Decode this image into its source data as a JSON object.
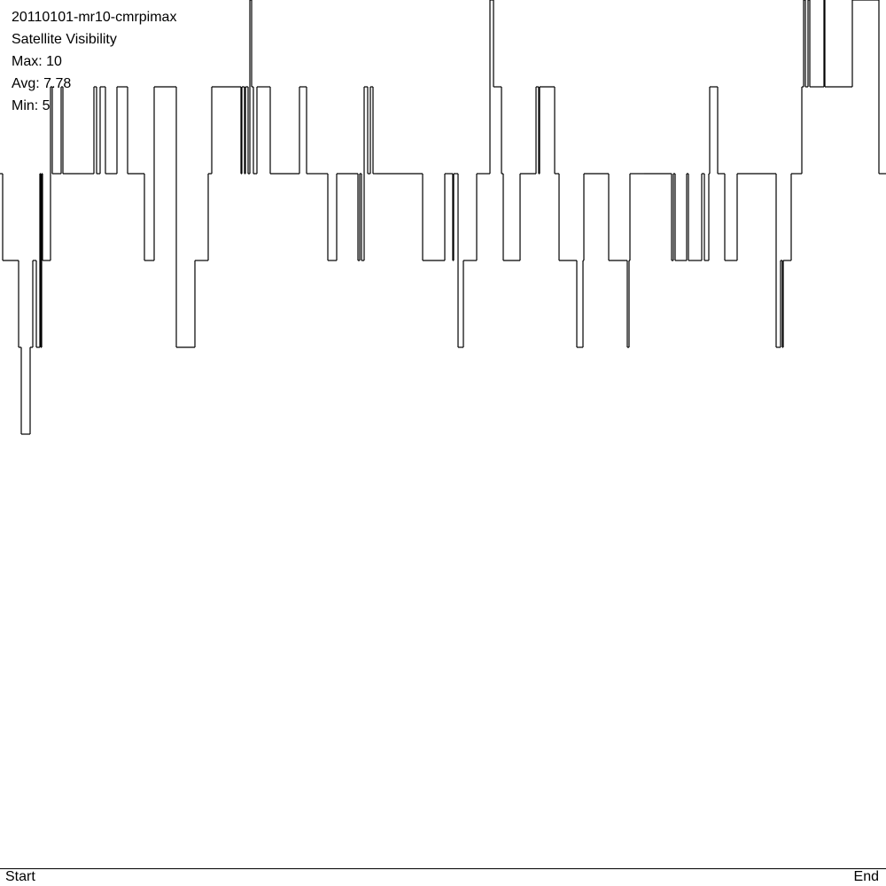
{
  "chart_data": {
    "type": "line",
    "title": "20110101-mr10-cmrpimax",
    "subtitle": "Satellite Visibility",
    "stats": {
      "max_label": "Max: 10",
      "avg_label": "Avg: 7.78",
      "min_label": "Min: 5"
    },
    "x_start_label": "Start",
    "x_end_label": "End",
    "ylim": [
      0,
      10
    ],
    "grid": false,
    "line_color": "#000000",
    "x": [
      0,
      3,
      21,
      24,
      34,
      37,
      41,
      45,
      46,
      47,
      48,
      57,
      59,
      69,
      71,
      90,
      106,
      109,
      113,
      119,
      132,
      144,
      145,
      163,
      174,
      199,
      220,
      235,
      239,
      272,
      273,
      276,
      277,
      280,
      282,
      284,
      286,
      287,
      290,
      305,
      338,
      346,
      359,
      370,
      380,
      404,
      406,
      408,
      411,
      415,
      418,
      421,
      425,
      477,
      502,
      511,
      512,
      517,
      523,
      538,
      553,
      557,
      566,
      568,
      587,
      605,
      608,
      609,
      626,
      631,
      651,
      658,
      659,
      687,
      708,
      710,
      711,
      727,
      758,
      760,
      762,
      775,
      777,
      792,
      795,
      800,
      801,
      810,
      818,
      825,
      832,
      876,
      881,
      883,
      884,
      893,
      905,
      907,
      909,
      912,
      914,
      917,
      930,
      931,
      962,
      992
    ],
    "y": [
      8,
      7,
      6,
      5,
      6,
      7,
      6,
      8,
      6,
      8,
      7,
      9,
      8,
      9,
      8,
      8,
      9,
      8,
      9,
      8,
      9,
      8,
      8,
      7,
      9,
      6,
      7,
      8,
      9,
      8,
      9,
      8,
      9,
      8,
      10,
      9,
      8,
      8,
      9,
      8,
      9,
      8,
      8,
      7,
      8,
      7,
      8,
      7,
      9,
      8,
      9,
      8,
      8,
      7,
      8,
      7,
      8,
      6,
      7,
      8,
      10,
      9,
      8,
      7,
      8,
      9,
      8,
      9,
      8,
      7,
      6,
      7,
      8,
      7,
      6,
      7,
      8,
      8,
      7,
      8,
      7,
      8,
      7,
      8,
      7,
      8,
      9,
      8,
      7,
      7,
      8,
      6,
      7,
      6,
      7,
      8,
      9,
      10,
      9,
      10,
      9,
      9,
      10,
      9,
      10,
      8
    ],
    "x_end": 1000
  }
}
